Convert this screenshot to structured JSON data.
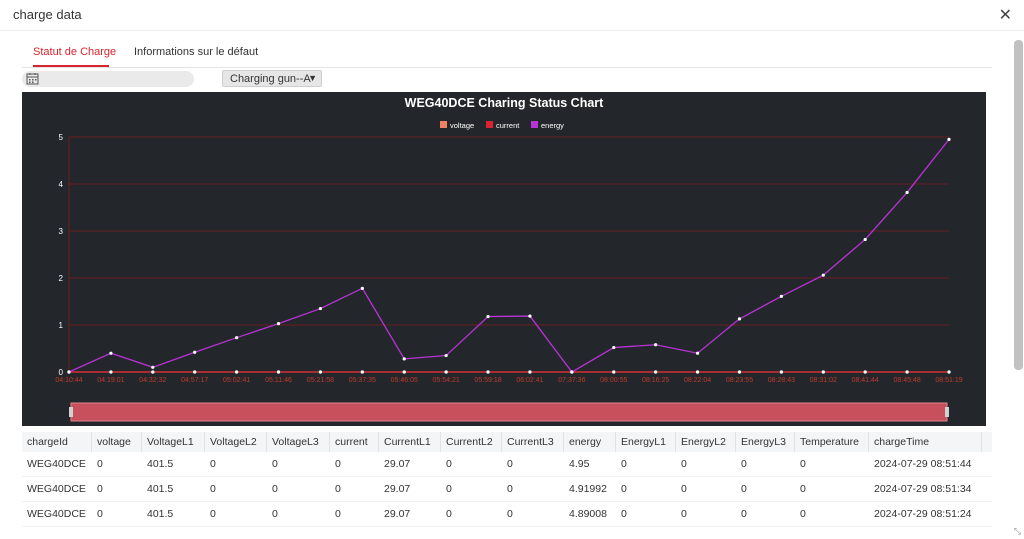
{
  "window": {
    "title": "charge data",
    "close_icon": "close-icon"
  },
  "tabs": [
    {
      "label": "Statut de Charge",
      "active": true
    },
    {
      "label": "Informations sur le défaut",
      "active": false
    }
  ],
  "toolbar": {
    "date_value": "",
    "gun_select": "Charging gun--A"
  },
  "chart_data": {
    "type": "line",
    "title": "WEG40DCE Charing Status Chart",
    "legend": [
      "voltage",
      "current",
      "energy"
    ],
    "legend_position": "top-center",
    "ylim": [
      0,
      5
    ],
    "yticks": [
      0,
      1,
      2,
      3,
      4,
      5
    ],
    "x": [
      "04:10:44",
      "04:19:01",
      "04:32:32",
      "04:57:17",
      "05:02:41",
      "05:11:46",
      "05:21:58",
      "05:37:35",
      "05:46:05",
      "05:54:21",
      "05:59:18",
      "06:02:41",
      "07:37:36",
      "08:00:55",
      "08:16:25",
      "08:22:04",
      "08:23:55",
      "08:28:43",
      "08:31:02",
      "08:41:44",
      "08:45:48",
      "08:51:19"
    ],
    "series": [
      {
        "name": "voltage",
        "color": "#f08060",
        "values": [
          0,
          0,
          0,
          0,
          0,
          0,
          0,
          0,
          0,
          0,
          0,
          0,
          0,
          0,
          0,
          0,
          0,
          0,
          0,
          0,
          0,
          0
        ]
      },
      {
        "name": "current",
        "color": "#d8242e",
        "values": [
          0,
          0,
          0,
          0,
          0,
          0,
          0,
          0,
          0,
          0,
          0,
          0,
          0,
          0,
          0,
          0,
          0,
          0,
          0,
          0,
          0,
          0
        ]
      },
      {
        "name": "energy",
        "color": "#b933d6",
        "values": [
          0,
          0.4,
          0.1,
          0.42,
          0.73,
          1.03,
          1.35,
          1.78,
          0.28,
          0.35,
          1.18,
          1.19,
          0,
          0.52,
          0.58,
          0.4,
          1.13,
          1.61,
          2.06,
          2.82,
          3.82,
          4.95
        ]
      }
    ],
    "grid": true,
    "colors": {
      "background": "#23272b",
      "grid": "#6a1d22",
      "zoom_slider": "#c8505c"
    }
  },
  "table": {
    "columns": [
      "chargeId",
      "voltage",
      "VoltageL1",
      "VoltageL2",
      "VoltageL3",
      "current",
      "CurrentL1",
      "CurrentL2",
      "CurrentL3",
      "energy",
      "EnergyL1",
      "EnergyL2",
      "EnergyL3",
      "Temperature",
      "chargeTime"
    ],
    "rows": [
      [
        "WEG40DCE",
        "0",
        "401.5",
        "0",
        "0",
        "0",
        "29.07",
        "0",
        "0",
        "4.95",
        "0",
        "0",
        "0",
        "0",
        "2024-07-29 08:51:44"
      ],
      [
        "WEG40DCE",
        "0",
        "401.5",
        "0",
        "0",
        "0",
        "29.07",
        "0",
        "0",
        "4.91992",
        "0",
        "0",
        "0",
        "0",
        "2024-07-29 08:51:34"
      ],
      [
        "WEG40DCE",
        "0",
        "401.5",
        "0",
        "0",
        "0",
        "29.07",
        "0",
        "0",
        "4.89008",
        "0",
        "0",
        "0",
        "0",
        "2024-07-29 08:51:24"
      ]
    ]
  }
}
